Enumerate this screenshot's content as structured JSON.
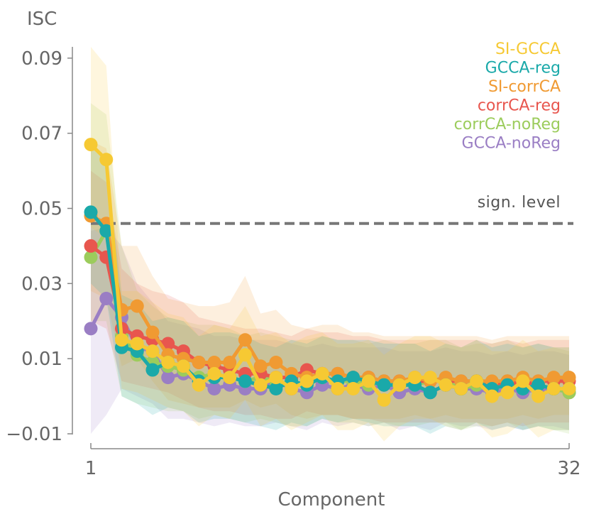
{
  "chart_data": {
    "type": "line",
    "title": "",
    "xlabel": "Component",
    "ylabel": "ISC",
    "x": [
      1,
      2,
      3,
      4,
      5,
      6,
      7,
      8,
      9,
      10,
      11,
      12,
      13,
      14,
      15,
      16,
      17,
      18,
      19,
      20,
      21,
      22,
      23,
      24,
      25,
      26,
      27,
      28,
      29,
      30,
      31,
      32
    ],
    "xlim": [
      1,
      32
    ],
    "ylim": [
      -0.01,
      0.093
    ],
    "x_ticks": [
      1,
      32
    ],
    "x_tick_labels": [
      "1",
      "32"
    ],
    "y_ticks": [
      -0.01,
      0.01,
      0.03,
      0.05,
      0.07,
      0.09
    ],
    "y_tick_labels": [
      "−0.01",
      "0.01",
      "0.03",
      "0.05",
      "0.07",
      "0.09"
    ],
    "reference_line": {
      "label": "sign. level",
      "value": 0.046,
      "color": "#777777"
    },
    "legend_position": "top-right",
    "series": [
      {
        "name": "GCCA-noReg",
        "color": "#9a7ec4",
        "values": [
          0.018,
          0.026,
          0.021,
          0.013,
          0.012,
          0.005,
          0.006,
          0.004,
          0.002,
          0.003,
          0.002,
          0.002,
          0.004,
          0.002,
          0.001,
          0.003,
          0.002,
          0.003,
          0.002,
          0.003,
          0.001,
          0.002,
          0.001,
          0.003,
          0.002,
          0.002,
          0.001,
          0.002,
          0.001,
          0.002,
          0.002,
          0.001
        ],
        "band": [
          [
            -0.01,
            0.044
          ],
          [
            -0.005,
            0.045
          ],
          [
            0.002,
            0.04
          ],
          [
            0.0,
            0.03
          ],
          [
            -0.002,
            0.025
          ],
          [
            -0.006,
            0.02
          ],
          [
            -0.006,
            0.019
          ],
          [
            -0.007,
            0.018
          ],
          [
            -0.008,
            0.016
          ],
          [
            -0.007,
            0.016
          ],
          [
            -0.008,
            0.015
          ],
          [
            -0.008,
            0.015
          ],
          [
            -0.007,
            0.015
          ],
          [
            -0.008,
            0.014
          ],
          [
            -0.009,
            0.013
          ],
          [
            -0.007,
            0.014
          ],
          [
            -0.008,
            0.013
          ],
          [
            -0.007,
            0.013
          ],
          [
            -0.008,
            0.013
          ],
          [
            -0.007,
            0.013
          ],
          [
            -0.009,
            0.012
          ],
          [
            -0.008,
            0.012
          ],
          [
            -0.009,
            0.012
          ],
          [
            -0.007,
            0.013
          ],
          [
            -0.008,
            0.012
          ],
          [
            -0.008,
            0.012
          ],
          [
            -0.009,
            0.011
          ],
          [
            -0.008,
            0.012
          ],
          [
            -0.009,
            0.011
          ],
          [
            -0.008,
            0.012
          ],
          [
            -0.008,
            0.012
          ],
          [
            -0.009,
            0.011
          ]
        ]
      },
      {
        "name": "corrCA-noReg",
        "color": "#9ccc5c",
        "values": [
          0.037,
          0.044,
          0.016,
          0.011,
          0.009,
          0.008,
          0.007,
          0.005,
          0.006,
          0.005,
          0.004,
          0.005,
          0.004,
          0.003,
          0.003,
          0.005,
          0.004,
          0.004,
          0.003,
          0.004,
          0.003,
          0.003,
          0.004,
          0.004,
          0.002,
          0.003,
          0.003,
          0.004,
          0.002,
          0.003,
          0.002,
          0.001
        ],
        "band": [
          [
            0.02,
            0.078
          ],
          [
            0.02,
            0.075
          ],
          [
            0.0,
            0.04
          ],
          [
            -0.002,
            0.028
          ],
          [
            -0.003,
            0.024
          ],
          [
            -0.004,
            0.021
          ],
          [
            -0.004,
            0.02
          ],
          [
            -0.006,
            0.019
          ],
          [
            -0.005,
            0.019
          ],
          [
            -0.006,
            0.018
          ],
          [
            -0.007,
            0.016
          ],
          [
            -0.006,
            0.017
          ],
          [
            -0.007,
            0.016
          ],
          [
            -0.008,
            0.015
          ],
          [
            -0.008,
            0.015
          ],
          [
            -0.006,
            0.016
          ],
          [
            -0.007,
            0.015
          ],
          [
            -0.007,
            0.015
          ],
          [
            -0.008,
            0.014
          ],
          [
            -0.007,
            0.015
          ],
          [
            -0.008,
            0.014
          ],
          [
            -0.008,
            0.014
          ],
          [
            -0.007,
            0.015
          ],
          [
            -0.007,
            0.015
          ],
          [
            -0.009,
            0.013
          ],
          [
            -0.008,
            0.014
          ],
          [
            -0.008,
            0.014
          ],
          [
            -0.007,
            0.015
          ],
          [
            -0.009,
            0.013
          ],
          [
            -0.008,
            0.014
          ],
          [
            -0.009,
            0.013
          ],
          [
            -0.01,
            0.012
          ]
        ]
      },
      {
        "name": "corrCA-reg",
        "color": "#e8564e",
        "values": [
          0.04,
          0.037,
          0.018,
          0.016,
          0.015,
          0.014,
          0.012,
          0.009,
          0.008,
          0.007,
          0.006,
          0.006,
          0.005,
          0.005,
          0.007,
          0.006,
          0.006,
          0.005,
          0.005,
          0.004,
          0.004,
          0.004,
          0.004,
          0.004,
          0.004,
          0.004,
          0.003,
          0.004,
          0.003,
          0.004,
          0.004,
          0.004
        ],
        "band": [
          [
            0.02,
            0.06
          ],
          [
            0.018,
            0.057
          ],
          [
            0.004,
            0.034
          ],
          [
            0.003,
            0.03
          ],
          [
            0.002,
            0.028
          ],
          [
            0.001,
            0.027
          ],
          [
            -0.001,
            0.025
          ],
          [
            -0.003,
            0.021
          ],
          [
            -0.004,
            0.02
          ],
          [
            -0.004,
            0.019
          ],
          [
            -0.005,
            0.018
          ],
          [
            -0.005,
            0.018
          ],
          [
            -0.006,
            0.017
          ],
          [
            -0.006,
            0.016
          ],
          [
            -0.004,
            0.018
          ],
          [
            -0.005,
            0.017
          ],
          [
            -0.005,
            0.017
          ],
          [
            -0.006,
            0.016
          ],
          [
            -0.006,
            0.016
          ],
          [
            -0.007,
            0.015
          ],
          [
            -0.007,
            0.015
          ],
          [
            -0.007,
            0.015
          ],
          [
            -0.007,
            0.015
          ],
          [
            -0.007,
            0.015
          ],
          [
            -0.007,
            0.015
          ],
          [
            -0.007,
            0.015
          ],
          [
            -0.008,
            0.014
          ],
          [
            -0.007,
            0.015
          ],
          [
            -0.008,
            0.014
          ],
          [
            -0.007,
            0.015
          ],
          [
            -0.007,
            0.015
          ],
          [
            -0.007,
            0.015
          ]
        ]
      },
      {
        "name": "SI-corrCA",
        "color": "#f09a32",
        "values": [
          0.048,
          0.046,
          0.023,
          0.024,
          0.017,
          0.011,
          0.01,
          0.009,
          0.009,
          0.009,
          0.015,
          0.008,
          0.009,
          0.006,
          0.005,
          0.006,
          0.006,
          0.005,
          0.005,
          0.004,
          0.004,
          0.005,
          0.004,
          0.005,
          0.004,
          0.004,
          0.004,
          0.004,
          0.005,
          0.004,
          0.005,
          0.005
        ],
        "band": [
          [
            0.028,
            0.068
          ],
          [
            0.026,
            0.066
          ],
          [
            0.008,
            0.04
          ],
          [
            0.01,
            0.04
          ],
          [
            0.004,
            0.032
          ],
          [
            -0.001,
            0.026
          ],
          [
            -0.002,
            0.025
          ],
          [
            -0.003,
            0.024
          ],
          [
            -0.003,
            0.024
          ],
          [
            -0.003,
            0.025
          ],
          [
            -0.001,
            0.032
          ],
          [
            -0.003,
            0.022
          ],
          [
            -0.002,
            0.023
          ],
          [
            -0.005,
            0.019
          ],
          [
            -0.006,
            0.018
          ],
          [
            -0.005,
            0.019
          ],
          [
            -0.005,
            0.019
          ],
          [
            -0.006,
            0.017
          ],
          [
            -0.006,
            0.017
          ],
          [
            -0.006,
            0.016
          ],
          [
            -0.006,
            0.016
          ],
          [
            -0.005,
            0.016
          ],
          [
            -0.006,
            0.016
          ],
          [
            -0.005,
            0.016
          ],
          [
            -0.006,
            0.016
          ],
          [
            -0.006,
            0.016
          ],
          [
            -0.006,
            0.015
          ],
          [
            -0.006,
            0.016
          ],
          [
            -0.005,
            0.016
          ],
          [
            -0.006,
            0.016
          ],
          [
            -0.005,
            0.016
          ],
          [
            -0.005,
            0.016
          ]
        ]
      },
      {
        "name": "GCCA-reg",
        "color": "#1aa9a9",
        "values": [
          0.049,
          0.044,
          0.013,
          0.012,
          0.007,
          0.009,
          0.008,
          0.004,
          0.005,
          0.005,
          0.004,
          0.003,
          0.002,
          0.004,
          0.003,
          0.005,
          0.004,
          0.005,
          0.004,
          0.003,
          0.003,
          0.003,
          0.001,
          0.003,
          0.002,
          0.004,
          0.002,
          0.003,
          0.002,
          0.003,
          0.002,
          0.002
        ],
        "band": [
          [
            0.03,
            0.068
          ],
          [
            0.026,
            0.063
          ],
          [
            0.0,
            0.027
          ],
          [
            -0.002,
            0.025
          ],
          [
            -0.005,
            0.02
          ],
          [
            -0.003,
            0.021
          ],
          [
            -0.004,
            0.02
          ],
          [
            -0.007,
            0.016
          ],
          [
            -0.006,
            0.017
          ],
          [
            -0.006,
            0.017
          ],
          [
            -0.007,
            0.016
          ],
          [
            -0.008,
            0.014
          ],
          [
            -0.009,
            0.013
          ],
          [
            -0.007,
            0.015
          ],
          [
            -0.008,
            0.014
          ],
          [
            -0.006,
            0.016
          ],
          [
            -0.007,
            0.015
          ],
          [
            -0.006,
            0.015
          ],
          [
            -0.007,
            0.015
          ],
          [
            -0.008,
            0.014
          ],
          [
            -0.008,
            0.014
          ],
          [
            -0.008,
            0.014
          ],
          [
            -0.01,
            0.012
          ],
          [
            -0.008,
            0.014
          ],
          [
            -0.009,
            0.013
          ],
          [
            -0.007,
            0.015
          ],
          [
            -0.009,
            0.013
          ],
          [
            -0.008,
            0.014
          ],
          [
            -0.009,
            0.013
          ],
          [
            -0.008,
            0.014
          ],
          [
            -0.009,
            0.013
          ],
          [
            -0.009,
            0.013
          ]
        ]
      },
      {
        "name": "SI-GCCA",
        "color": "#f6c933",
        "values": [
          0.067,
          0.063,
          0.015,
          0.014,
          0.012,
          0.009,
          0.008,
          0.003,
          0.006,
          0.005,
          0.011,
          0.003,
          0.005,
          0.002,
          0.004,
          0.006,
          0.002,
          0.002,
          0.004,
          -0.001,
          0.003,
          0.005,
          0.005,
          0.003,
          0.002,
          0.004,
          0.0,
          0.001,
          0.004,
          0.0,
          0.002,
          0.002
        ],
        "band": [
          [
            0.045,
            0.093
          ],
          [
            0.042,
            0.088
          ],
          [
            0.002,
            0.028
          ],
          [
            0.001,
            0.028
          ],
          [
            -0.001,
            0.025
          ],
          [
            -0.003,
            0.022
          ],
          [
            -0.004,
            0.021
          ],
          [
            -0.008,
            0.016
          ],
          [
            -0.005,
            0.019
          ],
          [
            -0.006,
            0.018
          ],
          [
            -0.001,
            0.024
          ],
          [
            -0.008,
            0.016
          ],
          [
            -0.006,
            0.017
          ],
          [
            -0.009,
            0.014
          ],
          [
            -0.007,
            0.016
          ],
          [
            -0.005,
            0.017
          ],
          [
            -0.009,
            0.014
          ],
          [
            -0.009,
            0.014
          ],
          [
            -0.007,
            0.015
          ],
          [
            -0.012,
            0.011
          ],
          [
            -0.008,
            0.014
          ],
          [
            -0.006,
            0.016
          ],
          [
            -0.006,
            0.016
          ],
          [
            -0.008,
            0.014
          ],
          [
            -0.009,
            0.013
          ],
          [
            -0.007,
            0.015
          ],
          [
            -0.011,
            0.012
          ],
          [
            -0.01,
            0.012
          ],
          [
            -0.007,
            0.015
          ],
          [
            -0.011,
            0.012
          ],
          [
            -0.009,
            0.013
          ],
          [
            -0.009,
            0.013
          ]
        ]
      }
    ],
    "legend": [
      {
        "label": "SI-GCCA",
        "color": "#f6c933"
      },
      {
        "label": "GCCA-reg",
        "color": "#1aa9a9"
      },
      {
        "label": "SI-corrCA",
        "color": "#f09a32"
      },
      {
        "label": "corrCA-reg",
        "color": "#e8564e"
      },
      {
        "label": "corrCA-noReg",
        "color": "#9ccc5c"
      },
      {
        "label": "GCCA-noReg",
        "color": "#9a7ec4"
      }
    ]
  }
}
